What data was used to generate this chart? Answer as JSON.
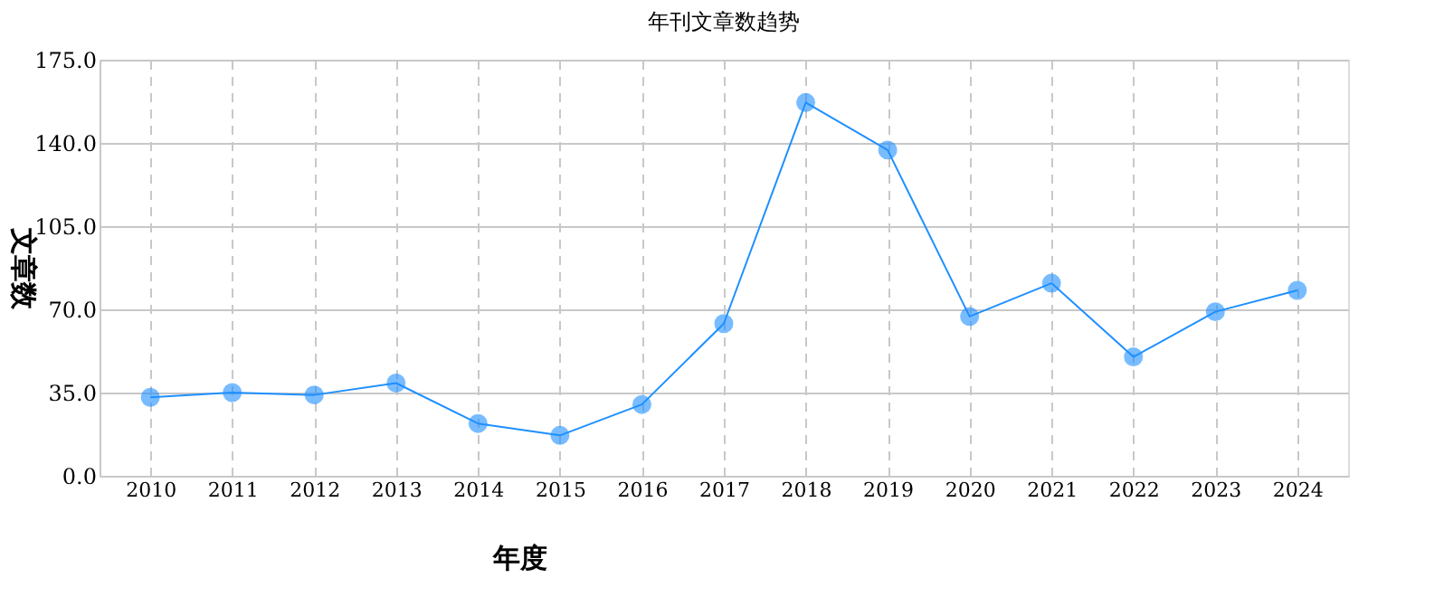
{
  "chart_data": {
    "type": "line",
    "title": "年刊文章数趋势",
    "xlabel": "年度",
    "ylabel": "文章数",
    "categories": [
      "2010",
      "2011",
      "2012",
      "2013",
      "2014",
      "2015",
      "2016",
      "2017",
      "2018",
      "2019",
      "2020",
      "2021",
      "2022",
      "2023",
      "2024"
    ],
    "series": [
      {
        "color": "#1e90ff",
        "values": [
          33,
          35,
          34,
          39,
          22,
          17,
          30,
          64,
          157,
          137,
          67,
          81,
          50,
          69,
          78
        ]
      }
    ],
    "ylim": [
      0,
      175
    ],
    "yticks": [
      {
        "value": 0,
        "label": "0.0"
      },
      {
        "value": 35,
        "label": "35.0"
      },
      {
        "value": 70,
        "label": "70.0"
      },
      {
        "value": 105,
        "label": "105.0"
      },
      {
        "value": 140,
        "label": "140.0"
      },
      {
        "value": 175,
        "label": "175.0"
      }
    ],
    "grid": true,
    "legend": false,
    "marker": "circle",
    "line_style": "solid"
  }
}
